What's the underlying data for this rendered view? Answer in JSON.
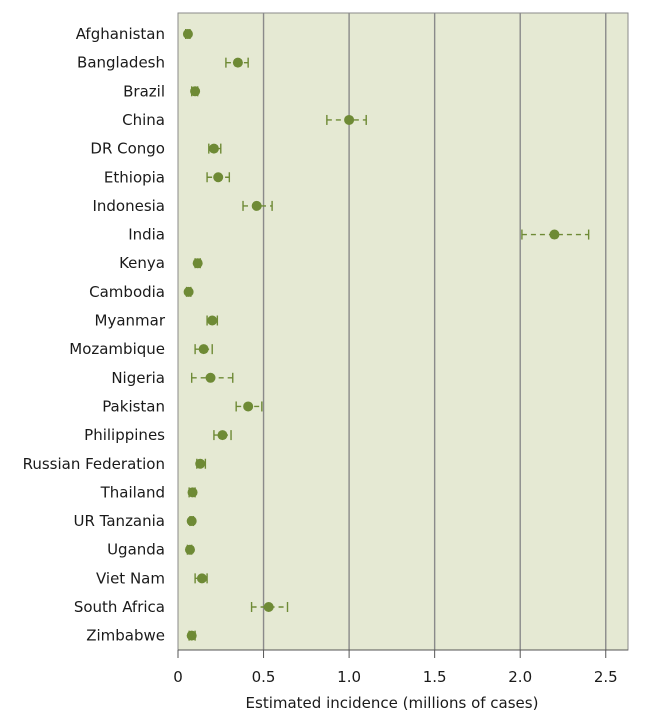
{
  "chart_data": {
    "type": "scatter",
    "title": "",
    "xlabel": "Estimated incidence (millions of cases)",
    "ylabel": "",
    "xlim": [
      0,
      2.63
    ],
    "xticks": [
      0,
      0.5,
      1.0,
      1.5,
      2.0,
      2.5
    ],
    "xtick_labels": [
      "0",
      "0.5",
      "1.0",
      "1.5",
      "2.0",
      "2.5"
    ],
    "grid": "vertical",
    "colors": {
      "plot_background": "#e5e9d3",
      "point": "#6e8a35",
      "gridline": "#8a8a8a",
      "frame": "#8a8a8a"
    },
    "series": [
      {
        "categories": [
          "Afghanistan",
          "Bangladesh",
          "Brazil",
          "China",
          "DR Congo",
          "Ethiopia",
          "Indonesia",
          "India",
          "Kenya",
          "Cambodia",
          "Myanmar",
          "Mozambique",
          "Nigeria",
          "Pakistan",
          "Philippines",
          "Russian Federation",
          "Thailand",
          "UR Tanzania",
          "Uganda",
          "Viet Nam",
          "South Africa",
          "Zimbabwe"
        ],
        "values": [
          0.058,
          0.35,
          0.1,
          1.0,
          0.21,
          0.235,
          0.46,
          2.2,
          0.115,
          0.062,
          0.2,
          0.15,
          0.19,
          0.41,
          0.26,
          0.13,
          0.085,
          0.08,
          0.07,
          0.14,
          0.53,
          0.08
        ],
        "lower": [
          0.045,
          0.28,
          0.08,
          0.87,
          0.18,
          0.17,
          0.38,
          2.01,
          0.1,
          0.05,
          0.17,
          0.1,
          0.08,
          0.34,
          0.21,
          0.11,
          0.065,
          0.07,
          0.055,
          0.1,
          0.43,
          0.065
        ],
        "upper": [
          0.07,
          0.41,
          0.115,
          1.1,
          0.25,
          0.3,
          0.55,
          2.4,
          0.13,
          0.075,
          0.23,
          0.2,
          0.32,
          0.49,
          0.31,
          0.16,
          0.1,
          0.09,
          0.08,
          0.17,
          0.64,
          0.1
        ]
      }
    ]
  }
}
